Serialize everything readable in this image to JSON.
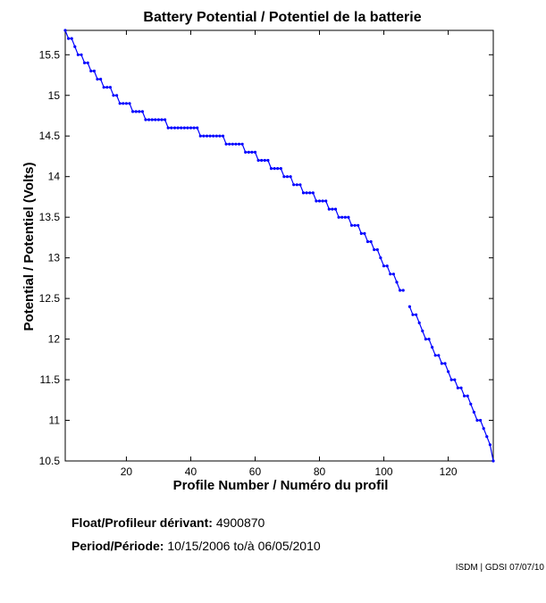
{
  "chart_data": {
    "type": "line",
    "title": "Battery Potential / Potentiel de la batterie",
    "xlabel": "Profile Number / Numéro du profil",
    "ylabel": "Potential / Potentiel (Volts)",
    "xlim": [
      1,
      134
    ],
    "ylim": [
      10.5,
      15.8
    ],
    "xticks": [
      20,
      40,
      60,
      80,
      100,
      120
    ],
    "yticks": [
      10.5,
      11,
      11.5,
      12,
      12.5,
      13,
      13.5,
      14,
      14.5,
      15,
      15.5
    ],
    "grid": false,
    "color": "#0000ff",
    "series": [
      {
        "x": [
          1,
          2,
          3,
          4,
          5,
          6,
          7,
          8,
          9,
          10,
          11,
          12,
          13,
          14,
          15,
          16,
          17,
          18,
          19,
          20,
          21,
          22,
          23,
          24,
          25,
          26,
          27,
          28,
          29,
          30,
          31,
          32,
          33,
          34,
          35,
          36,
          37,
          38,
          39,
          40,
          41,
          42,
          43,
          44,
          45,
          46,
          47,
          48,
          49,
          50,
          51,
          52,
          53,
          54,
          55,
          56,
          57,
          58,
          59,
          60,
          61,
          62,
          63,
          64,
          65,
          66,
          67,
          68,
          69,
          70,
          71,
          72,
          73,
          74,
          75,
          76,
          77,
          78,
          79,
          80,
          81,
          82,
          83,
          84,
          85,
          86,
          87,
          88,
          89,
          90,
          91,
          92,
          93,
          94,
          95,
          96,
          97,
          98,
          99,
          100,
          101,
          102,
          103,
          104,
          105,
          106,
          107,
          108,
          109,
          110,
          111,
          112,
          113,
          114,
          115,
          116,
          117,
          118,
          119,
          120,
          121,
          122,
          123,
          124,
          125,
          126,
          127,
          128,
          129,
          130,
          131,
          132,
          133,
          134
        ],
        "y": [
          15.8,
          15.7,
          15.7,
          15.6,
          15.5,
          15.5,
          15.4,
          15.4,
          15.3,
          15.3,
          15.2,
          15.2,
          15.1,
          15.1,
          15.1,
          15.0,
          15.0,
          14.9,
          14.9,
          14.9,
          14.9,
          14.8,
          14.8,
          14.8,
          14.8,
          14.7,
          14.7,
          14.7,
          14.7,
          14.7,
          14.7,
          14.7,
          14.6,
          14.6,
          14.6,
          14.6,
          14.6,
          14.6,
          14.6,
          14.6,
          14.6,
          14.6,
          14.5,
          14.5,
          14.5,
          14.5,
          14.5,
          14.5,
          14.5,
          14.5,
          14.4,
          14.4,
          14.4,
          14.4,
          14.4,
          14.4,
          14.3,
          14.3,
          14.3,
          14.3,
          14.2,
          14.2,
          14.2,
          14.2,
          14.1,
          14.1,
          14.1,
          14.1,
          14.0,
          14.0,
          14.0,
          13.9,
          13.9,
          13.9,
          13.8,
          13.8,
          13.8,
          13.8,
          13.7,
          13.7,
          13.7,
          13.7,
          13.6,
          13.6,
          13.6,
          13.5,
          13.5,
          13.5,
          13.5,
          13.4,
          13.4,
          13.4,
          13.3,
          13.3,
          13.2,
          13.2,
          13.1,
          13.1,
          13.0,
          12.9,
          12.9,
          12.8,
          12.8,
          12.7,
          12.6,
          12.6,
          null,
          12.4,
          12.3,
          12.3,
          12.2,
          12.1,
          12.0,
          12.0,
          11.9,
          11.8,
          11.8,
          11.7,
          11.7,
          11.6,
          11.5,
          11.5,
          11.4,
          11.4,
          11.3,
          11.3,
          11.2,
          11.1,
          11.0,
          11.0,
          10.9,
          10.8,
          10.7,
          10.5
        ]
      }
    ]
  },
  "info": {
    "float_label": "Float/Profileur dérivant:",
    "float_value": "4900870",
    "period_label": "Period/Période:",
    "period_start": "10/15/2006",
    "period_to": "to/à",
    "period_end": "06/05/2010"
  },
  "credit": "ISDM | GDSI 07/07/10"
}
